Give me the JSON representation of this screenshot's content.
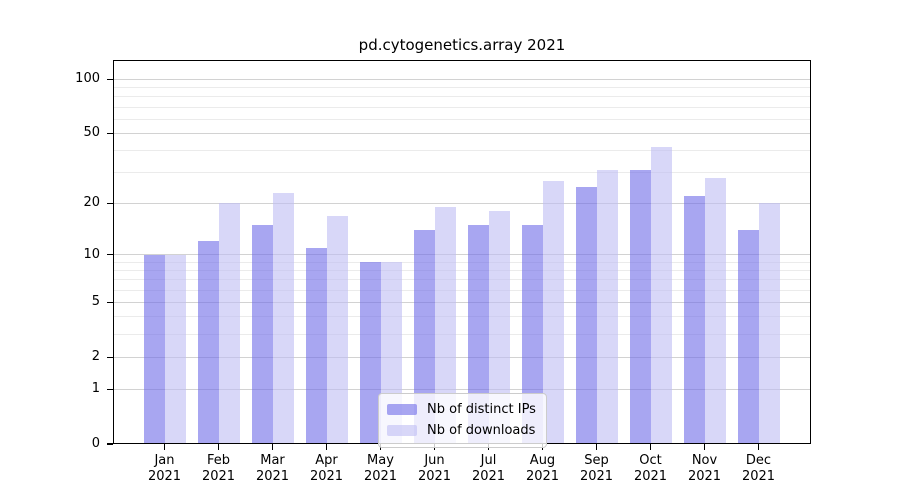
{
  "title": "pd.cytogenetics.array 2021",
  "chart_data": {
    "type": "bar",
    "title": "pd.cytogenetics.array 2021",
    "categories": [
      "Jan",
      "Feb",
      "Mar",
      "Apr",
      "May",
      "Jun",
      "Jul",
      "Aug",
      "Sep",
      "Oct",
      "Nov",
      "Dec"
    ],
    "x_year": "2021",
    "series": [
      {
        "name": "Nb of distinct IPs",
        "color": "rgba(110,107,232,0.6)",
        "color_hex": "#a9a7ef",
        "values": [
          10,
          12,
          15,
          11,
          9,
          14,
          15,
          15,
          25,
          31,
          22,
          14
        ]
      },
      {
        "name": "Nb of downloads",
        "color": "rgba(190,188,243,0.6)",
        "color_hex": "#d9d8f8",
        "values": [
          10,
          20,
          23,
          17,
          9,
          19,
          18,
          27,
          31,
          42,
          28,
          20
        ]
      }
    ],
    "yscale": "log1p",
    "ylim": [
      0,
      128
    ],
    "y_major_ticks": [
      0,
      1,
      2,
      5,
      10,
      20,
      50,
      100
    ],
    "y_minor_ticks": [
      3,
      4,
      6,
      7,
      8,
      9,
      30,
      40,
      60,
      70,
      80,
      90
    ],
    "grid": "on",
    "legend_position": "lower center"
  }
}
